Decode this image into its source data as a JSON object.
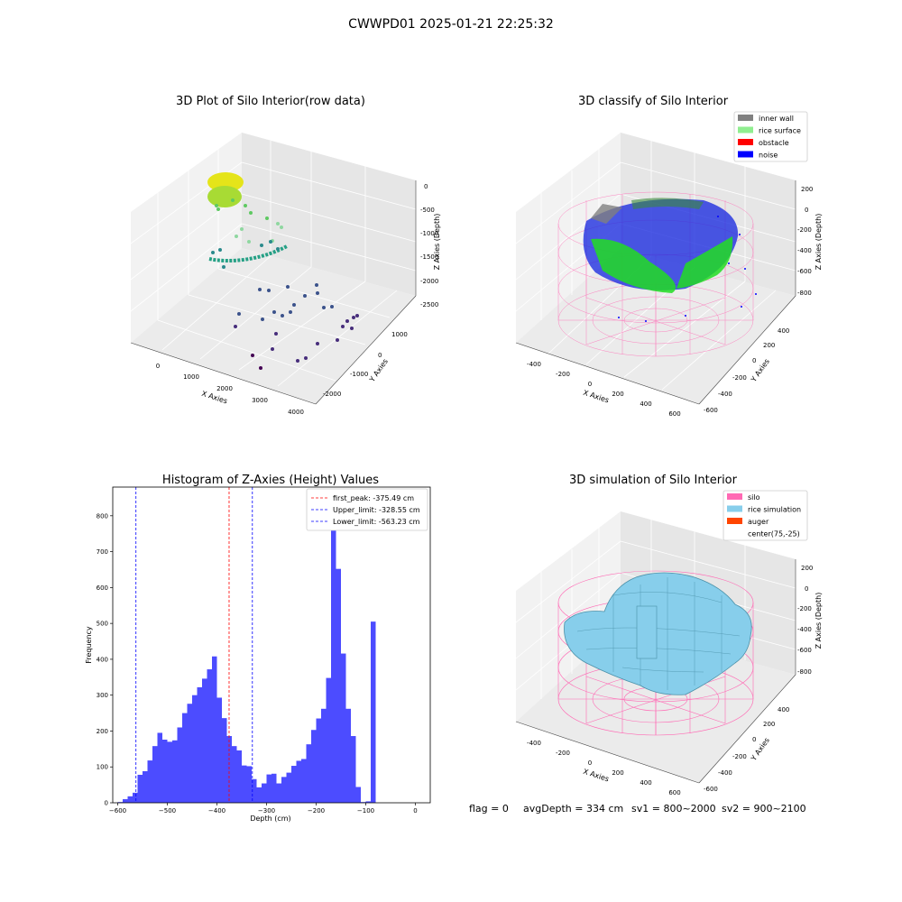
{
  "figure": {
    "suptitle": "CWWPD01 2025-01-21 22:25:32",
    "footer": {
      "flag": "flag = 0",
      "avg_depth": "avgDepth = 334 cm",
      "sv1": "sv1 = 800~2000",
      "sv2": "sv2 = 900~2100"
    }
  },
  "panels": {
    "raw": {
      "title": "3D Plot of Silo Interior(row data)",
      "xlabel": "X Axies",
      "ylabel": "Y Axies",
      "zlabel": "Z Axies (Depth)",
      "xticks": [
        "0",
        "1000",
        "2000",
        "3000",
        "4000"
      ],
      "yticks": [
        "-2000",
        "-1000",
        "0",
        "1000"
      ],
      "zticks": [
        "0",
        "-500",
        "-1000",
        "-1500",
        "-2000",
        "-2500"
      ]
    },
    "classify": {
      "title": "3D classify of Silo Interior",
      "xlabel": "X Axies",
      "ylabel": "Y Axies",
      "zlabel": "Z Axies (Depth)",
      "xticks": [
        "-400",
        "-200",
        "0",
        "200",
        "400",
        "600"
      ],
      "yticks": [
        "-600",
        "-400",
        "-200",
        "0",
        "200",
        "400"
      ],
      "zticks": [
        "200",
        "0",
        "-200",
        "-400",
        "-600",
        "-800"
      ],
      "legend": [
        {
          "label": "inner wall",
          "color": "#808080"
        },
        {
          "label": "rice surface",
          "color": "#90ee90"
        },
        {
          "label": "obstacle",
          "color": "#ff0000"
        },
        {
          "label": "noise",
          "color": "#0000ff"
        }
      ]
    },
    "simulation": {
      "title": "3D simulation of Silo Interior",
      "xlabel": "X Axies",
      "ylabel": "Y Axies",
      "zlabel": "Z Axies (Depth)",
      "xticks": [
        "-400",
        "-200",
        "0",
        "200",
        "400",
        "600"
      ],
      "yticks": [
        "-600",
        "-400",
        "-200",
        "0",
        "200",
        "400"
      ],
      "zticks": [
        "200",
        "0",
        "-200",
        "-400",
        "-600",
        "-800"
      ],
      "legend": [
        {
          "label": "silo",
          "color": "#ff69b4"
        },
        {
          "label": "rice simulation",
          "color": "#87ceeb"
        },
        {
          "label": "auger",
          "color": "#ff4500"
        },
        {
          "label": "center(75,-25)",
          "color": "none"
        }
      ]
    }
  },
  "chart_data": {
    "type": "bar",
    "title": "Histogram of Z-Axies (Height) Values",
    "xlabel": "Depth (cm)",
    "ylabel": "Frequency",
    "bar_color": "#0000ff",
    "bin_start": -600,
    "bin_width": 10,
    "counts": [
      2,
      10,
      18,
      28,
      78,
      88,
      118,
      158,
      195,
      176,
      170,
      174,
      210,
      250,
      276,
      300,
      322,
      346,
      372,
      408,
      293,
      236,
      186,
      158,
      146,
      104,
      102,
      66,
      43,
      54,
      79,
      81,
      54,
      72,
      84,
      103,
      117,
      122,
      163,
      203,
      235,
      262,
      348,
      820,
      652,
      416,
      262,
      186,
      44,
      2,
      4,
      505
    ],
    "xlim": [
      -610,
      30
    ],
    "ylim": [
      0,
      880
    ],
    "xticks": [
      -600,
      -500,
      -400,
      -300,
      -200,
      -100,
      0
    ],
    "yticks": [
      0,
      100,
      200,
      300,
      400,
      500,
      600,
      700,
      800
    ],
    "grid": false,
    "legend_position": "upper right",
    "vlines": [
      {
        "label": "first_peak: -375.49 cm",
        "x": -375.49,
        "color": "#ff0000"
      },
      {
        "label": "Upper_limit: -328.55 cm",
        "x": -328.55,
        "color": "#0000ff"
      },
      {
        "label": "Lower_limit: -563.23 cm",
        "x": -563.23,
        "color": "#0000ff"
      }
    ]
  }
}
